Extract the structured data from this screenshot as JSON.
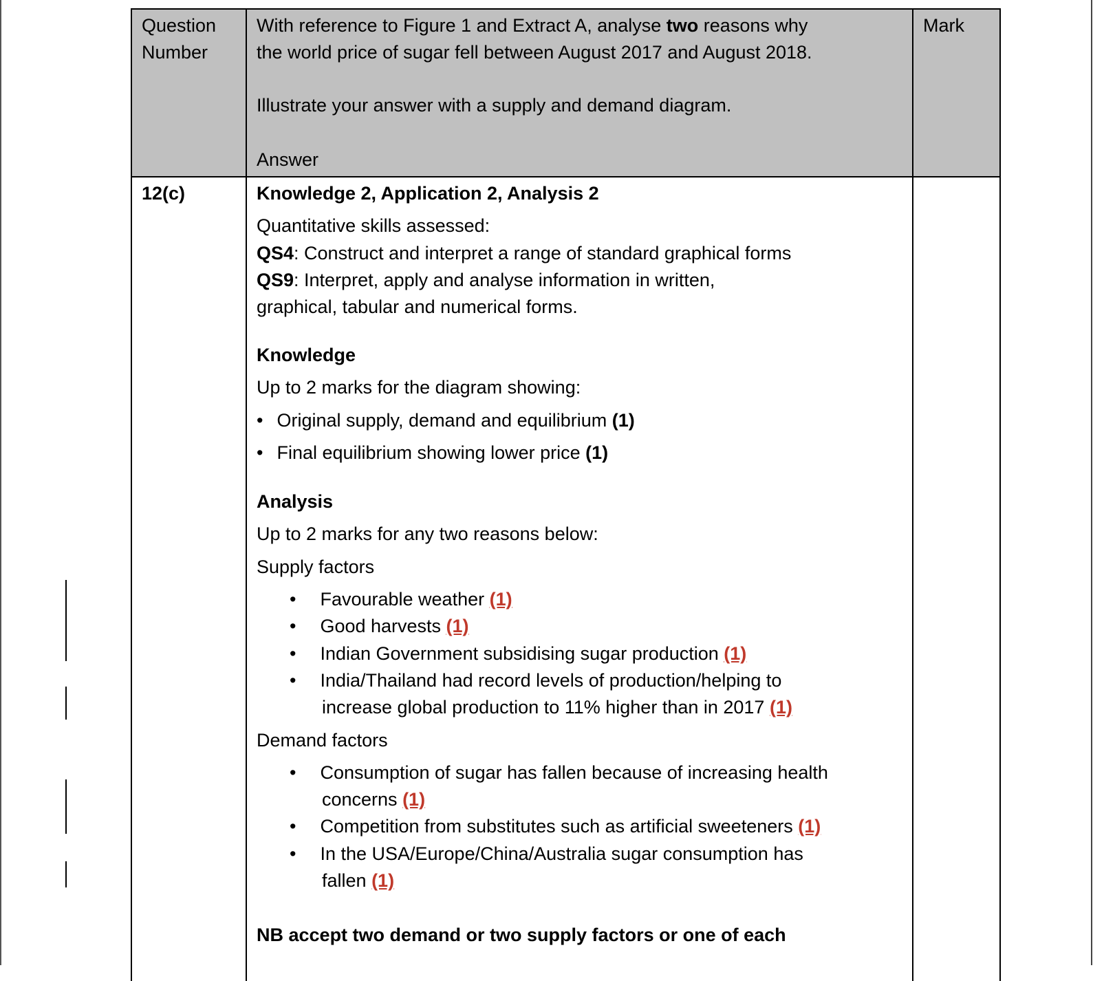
{
  "header": {
    "col1": [
      "Question",
      "Number"
    ],
    "col2": {
      "line1_pre": "With reference to Figure 1 and Extract A, analyse ",
      "line1_bold": "two",
      "line1_post": " reasons why",
      "line2": "the world price of sugar fell between August 2017 and August 2018.",
      "line3": "Illustrate your answer with a supply and demand diagram.",
      "line4": "Answer"
    },
    "col3": "Mark"
  },
  "row": {
    "question_number": "12(c)",
    "title": "Knowledge 2, Application 2, Analysis 2",
    "qs_intro": "Quantitative skills assessed:",
    "qs4_label": "QS4",
    "qs4_text": ": Construct and interpret a range of standard graphical forms",
    "qs9_label": "QS9",
    "qs9_text1": ": Interpret, apply and analyse information in written,",
    "qs9_text2": "graphical, tabular and numerical forms.",
    "knowledge_heading": "Knowledge",
    "knowledge_intro": "Up to 2 marks for the diagram showing:",
    "knowledge_items": [
      {
        "text": "Original supply, demand and equilibrium ",
        "mark": "(1)"
      },
      {
        "text": "Final equilibrium showing lower price ",
        "mark": "(1)"
      }
    ],
    "analysis_heading": "Analysis",
    "analysis_intro": "Up to 2 marks for any two reasons below:",
    "supply_heading": "Supply factors",
    "supply_items": [
      {
        "l1": "Favourable weather ",
        "mark": "(1)"
      },
      {
        "l1": "Good harvests ",
        "mark": "(1)"
      },
      {
        "l1": "Indian Government subsidising sugar production ",
        "mark": "(1)"
      },
      {
        "l1": "India/Thailand had record levels of production/helping to",
        "l2": "increase global production to 11% higher than in 2017 ",
        "mark": "(1)"
      }
    ],
    "demand_heading": "Demand factors",
    "demand_items": [
      {
        "l1": "Consumption of sugar has fallen because of increasing health",
        "l2": "concerns ",
        "mark": "(1)"
      },
      {
        "l1": "Competition from substitutes such as artificial sweeteners ",
        "mark": "(1)"
      },
      {
        "l1": "In the USA/Europe/China/Australia sugar consumption has",
        "l2": "fallen ",
        "mark": "(1)"
      }
    ],
    "nb": "NB accept two demand or two supply factors or one of each"
  },
  "colors": {
    "header_bg": "#c0c0c0",
    "mark_red": "#c0392b"
  }
}
